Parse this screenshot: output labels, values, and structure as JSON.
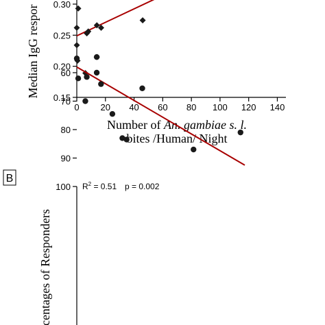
{
  "panel_b_label": "B",
  "chart_data": [
    {
      "type": "scatter",
      "panel": "A",
      "ylabel": "Median IgG respor",
      "xlabel_parts": [
        "Number of ",
        "An. gambiae s. l.",
        "bites /Human/ Night"
      ],
      "xlim": [
        0,
        140
      ],
      "ylim": [
        0.15,
        0.31
      ],
      "xticks": [
        0,
        20,
        40,
        60,
        80,
        100,
        120,
        140
      ],
      "yticks": [
        0.15,
        0.2,
        0.25,
        0.3
      ],
      "ytick_labels": [
        "0.15",
        "0.20",
        "0.25",
        "0.30"
      ],
      "points": [
        {
          "x": 1,
          "y": 0.293
        },
        {
          "x": 0,
          "y": 0.262
        },
        {
          "x": 0,
          "y": 0.234
        },
        {
          "x": 0.5,
          "y": 0.209
        },
        {
          "x": 6,
          "y": 0.189
        },
        {
          "x": 7,
          "y": 0.253
        },
        {
          "x": 8,
          "y": 0.256
        },
        {
          "x": 14,
          "y": 0.266
        },
        {
          "x": 17,
          "y": 0.262
        },
        {
          "x": 14,
          "y": 0.215
        },
        {
          "x": 46,
          "y": 0.274
        }
      ],
      "trendline": {
        "x0": 0,
        "y0": 0.249,
        "x1": 59,
        "y1": 0.313
      },
      "marker": "diamond",
      "line_color": "#a80000"
    },
    {
      "type": "scatter",
      "panel": "B",
      "ylabel": "centages of Responders",
      "annotation_r2_label": "R",
      "annotation_r2_sup": "2",
      "annotation_r2_value": " = 0.51",
      "annotation_p": "p = 0.002",
      "ylim": [
        50,
        100
      ],
      "xlim": [
        0,
        120
      ],
      "yticks": [
        60,
        70,
        80,
        90,
        100
      ],
      "ytick_labels": [
        "60",
        "70",
        "80",
        "90",
        "100"
      ],
      "points": [
        {
          "x": 1,
          "y": 62
        },
        {
          "x": 6,
          "y": 70
        },
        {
          "x": 7,
          "y": 61.5
        },
        {
          "x": 0,
          "y": 55
        },
        {
          "x": 14,
          "y": 54.5
        },
        {
          "x": 14,
          "y": 60
        },
        {
          "x": 17,
          "y": 64
        },
        {
          "x": 25,
          "y": 74.5
        },
        {
          "x": 32,
          "y": 83
        },
        {
          "x": 35,
          "y": 83.5
        },
        {
          "x": 46,
          "y": 65.5
        },
        {
          "x": 82,
          "y": 87
        },
        {
          "x": 115,
          "y": 81
        }
      ],
      "trendline": {
        "x0": 0,
        "y0": 58,
        "x1": 118,
        "y1": 92.5
      },
      "marker": "circle",
      "line_color": "#a80000"
    }
  ]
}
